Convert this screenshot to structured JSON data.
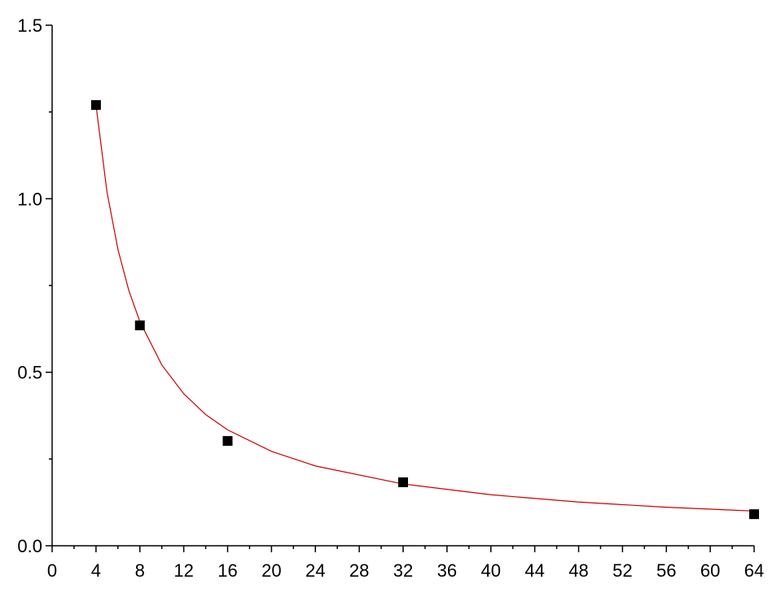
{
  "chart_data": {
    "type": "scatter",
    "series": [
      {
        "type": "scatter",
        "color": "#000000",
        "x": [
          4,
          8,
          16,
          32,
          64
        ],
        "values": [
          1.27,
          0.635,
          0.302,
          0.183,
          0.091
        ]
      },
      {
        "type": "line",
        "color": "#cc0000",
        "x": [
          4,
          5,
          6,
          7,
          8,
          10,
          12,
          14,
          16,
          20,
          24,
          32,
          40,
          48,
          56,
          64
        ],
        "values": [
          1.27,
          1.02,
          0.854,
          0.735,
          0.646,
          0.521,
          0.438,
          0.378,
          0.334,
          0.272,
          0.23,
          0.178,
          0.147,
          0.126,
          0.111,
          0.1
        ]
      }
    ],
    "xlim": [
      0,
      64
    ],
    "xticks": [
      0,
      4,
      8,
      12,
      16,
      20,
      24,
      28,
      32,
      36,
      40,
      44,
      48,
      52,
      56,
      60,
      64
    ],
    "ylim": [
      0,
      1.5
    ],
    "yticks": [
      {
        "value": 0,
        "label": "0.0"
      },
      0.5,
      {
        "value": 1,
        "label": "1.0"
      },
      1.5
    ],
    "grid": false
  }
}
